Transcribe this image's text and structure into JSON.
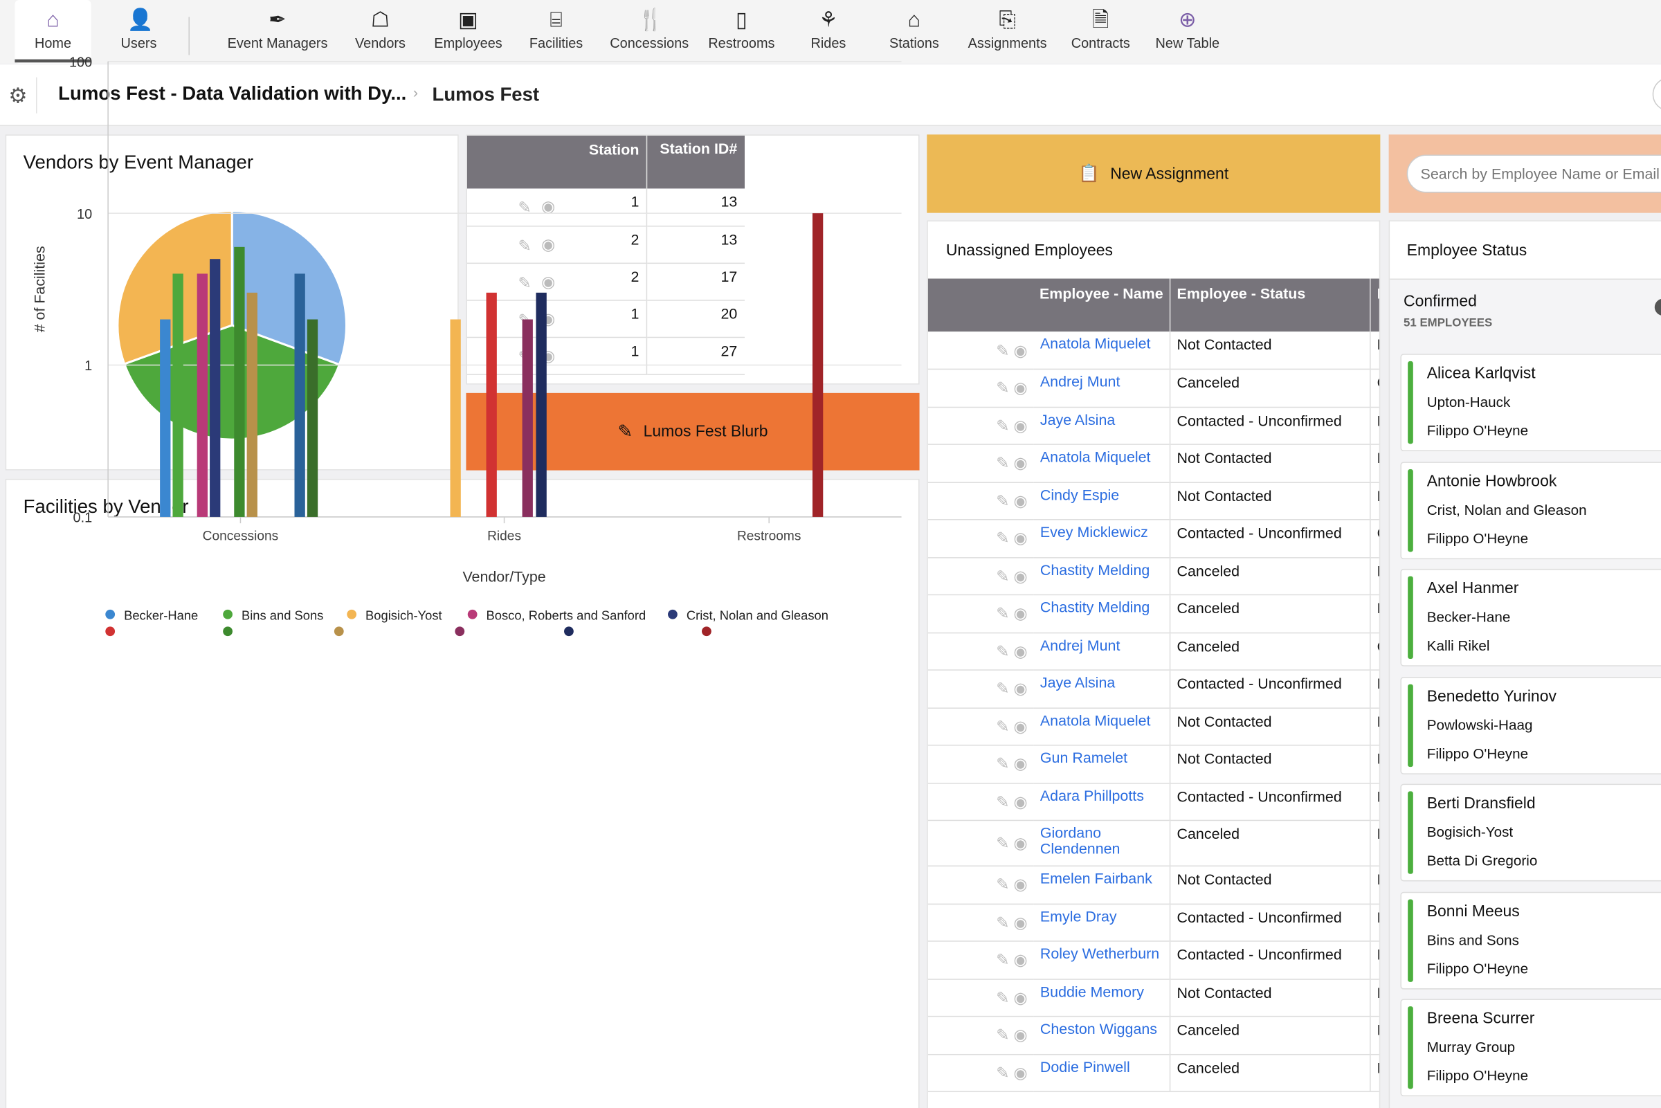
{
  "nav": {
    "items": [
      {
        "label": "Home",
        "icon": "home-icon",
        "active": true
      },
      {
        "label": "Users",
        "icon": "user-icon"
      },
      {
        "label": "Event Managers",
        "icon": "pen-icon"
      },
      {
        "label": "Vendors",
        "icon": "vendor-icon"
      },
      {
        "label": "Employees",
        "icon": "id-badge-icon"
      },
      {
        "label": "Facilities",
        "icon": "booth-icon"
      },
      {
        "label": "Concessions",
        "icon": "fork-spoon-icon"
      },
      {
        "label": "Restrooms",
        "icon": "door-icon"
      },
      {
        "label": "Rides",
        "icon": "balloons-icon"
      },
      {
        "label": "Stations",
        "icon": "garage-icon"
      },
      {
        "label": "Assignments",
        "icon": "clipboard-arrow-icon"
      },
      {
        "label": "Contracts",
        "icon": "contract-icon"
      },
      {
        "label": "New Table",
        "icon": "plus-circle-icon"
      }
    ]
  },
  "breadcrumb": {
    "app": "Lumos Fest - Data Validation with Dy...",
    "page": "Lumos Fest",
    "separator": "›"
  },
  "vendors_panel": {
    "title": "Vendors by Event Manager"
  },
  "station_table": {
    "headers": [
      "Station",
      "Station ID#"
    ],
    "rows": [
      [
        "1",
        "13"
      ],
      [
        "2",
        "13"
      ],
      [
        "2",
        "17"
      ],
      [
        "1",
        "20"
      ],
      [
        "1",
        "27"
      ]
    ]
  },
  "blurb_button": "Lumos Fest Blurb",
  "new_assignment_button": "New Assignment",
  "search": {
    "placeholder": "Search by Employee Name or Email"
  },
  "unassigned": {
    "title": "Unassigned Employees",
    "headers": [
      "Employee - Name",
      "Employee - Status",
      "E"
    ],
    "rows": [
      [
        "Anatola Miquelet",
        "Not Contacted",
        "F"
      ],
      [
        "Andrej Munt",
        "Canceled",
        "C"
      ],
      [
        "Jaye Alsina",
        "Contacted - Unconfirmed",
        "F"
      ],
      [
        "Anatola Miquelet",
        "Not Contacted",
        "F"
      ],
      [
        "Cindy Espie",
        "Not Contacted",
        "E"
      ],
      [
        "Evey Micklewicz",
        "Contacted - Unconfirmed",
        "C"
      ],
      [
        "Chastity Melding",
        "Canceled",
        "F"
      ],
      [
        "Chastity Melding",
        "Canceled",
        "F"
      ],
      [
        "Andrej Munt",
        "Canceled",
        "C"
      ],
      [
        "Jaye Alsina",
        "Contacted - Unconfirmed",
        "F"
      ],
      [
        "Anatola Miquelet",
        "Not Contacted",
        "F"
      ],
      [
        "Gun Ramelet",
        "Not Contacted",
        "E"
      ],
      [
        "Adara Phillpotts",
        "Contacted - Unconfirmed",
        "E"
      ],
      [
        "Giordano Clendennen",
        "Canceled",
        "F"
      ],
      [
        "Emelen Fairbank",
        "Not Contacted",
        "E"
      ],
      [
        "Emyle Dray",
        "Contacted - Unconfirmed",
        "E"
      ],
      [
        "Roley Wetherburn",
        "Contacted - Unconfirmed",
        "E"
      ],
      [
        "Buddie Memory",
        "Not Contacted",
        "E"
      ],
      [
        "Cheston Wiggans",
        "Canceled",
        "K"
      ],
      [
        "Dodie Pinwell",
        "Canceled",
        "E"
      ]
    ]
  },
  "employee_status": {
    "title": "Employee Status",
    "group": "Confirmed",
    "count": "51 EMPLOYEES",
    "cards": [
      [
        "Alicea Karlqvist",
        "Upton-Hauck",
        "Filippo O'Heyne"
      ],
      [
        "Antonie Howbrook",
        "Crist, Nolan and Gleason",
        "Filippo O'Heyne"
      ],
      [
        "Axel Hanmer",
        "Becker-Hane",
        "Kalli Rikel"
      ],
      [
        "Benedetto Yurinov",
        "Powlowski-Haag",
        "Filippo O'Heyne"
      ],
      [
        "Berti Dransfield",
        "Bogisich-Yost",
        "Betta Di Gregorio"
      ],
      [
        "Bonni Meeus",
        "Bins and Sons",
        "Filippo O'Heyne"
      ],
      [
        "Breena Scurrer",
        "Murray Group",
        "Filippo O'Heyne"
      ]
    ]
  },
  "colors": {
    "accent": "#7b5ea7",
    "blurb": "#ed7535",
    "new_assignment": "#ecb955",
    "search_bg": "#f3c0a0",
    "header": "#77747b",
    "link": "#2b6de0",
    "status_bar": "#4caf3e"
  },
  "chart_data": [
    {
      "type": "pie",
      "title": "Vendors by Event Manager",
      "slices": [
        {
          "share": 0.306,
          "color": "#86b3e6"
        },
        {
          "share": 0.389,
          "color": "#4ea83c"
        },
        {
          "share": 0.305,
          "color": "#f3b552"
        }
      ]
    },
    {
      "type": "bar",
      "title": "Facilities by Vendor",
      "xlabel": "Vendor/Type",
      "ylabel": "# of Facilities",
      "yscale": "log",
      "ylim": [
        0.1,
        100
      ],
      "yticks": [
        "100",
        "10",
        "1",
        "0.1"
      ],
      "categories": [
        "Concessions",
        "Rides",
        "Restrooms"
      ],
      "legend": [
        {
          "name": "Becker-Hane",
          "color": "#3b87d0"
        },
        {
          "name": "Bins and Sons",
          "color": "#4ea83c"
        },
        {
          "name": "Bogisich-Yost",
          "color": "#f3b552"
        },
        {
          "name": "Bosco, Roberts and Sanford",
          "color": "#b93a78"
        },
        {
          "name": "Crist, Nolan and Gleason",
          "color": "#2b3a78"
        }
      ],
      "legend_row2_colors": [
        "#d13232",
        "#3d8a2e",
        "#b8914a",
        "#8a2f5e",
        "#1f2c5e",
        "#a02428"
      ],
      "bars": [
        {
          "category": "Concessions",
          "value": 2,
          "color": "#3b87d0"
        },
        {
          "category": "Concessions",
          "value": 4,
          "color": "#4ea83c"
        },
        {
          "category": "Concessions",
          "value": 4,
          "color": "#b93a78"
        },
        {
          "category": "Concessions",
          "value": 5,
          "color": "#2b3a78"
        },
        {
          "category": "Concessions",
          "value": 6,
          "color": "#3d8a2e"
        },
        {
          "category": "Concessions",
          "value": 3,
          "color": "#b8914a"
        },
        {
          "category": "Concessions",
          "value": 4,
          "color": "#2a6299"
        },
        {
          "category": "Concessions",
          "value": 2,
          "color": "#3a6e2a"
        },
        {
          "category": "Rides",
          "value": 2,
          "color": "#f3b552"
        },
        {
          "category": "Rides",
          "value": 3,
          "color": "#d13232"
        },
        {
          "category": "Rides",
          "value": 2,
          "color": "#8a2f5e"
        },
        {
          "category": "Rides",
          "value": 3,
          "color": "#1f2c5e"
        },
        {
          "category": "Restrooms",
          "value": 10,
          "color": "#a02428"
        }
      ]
    }
  ]
}
